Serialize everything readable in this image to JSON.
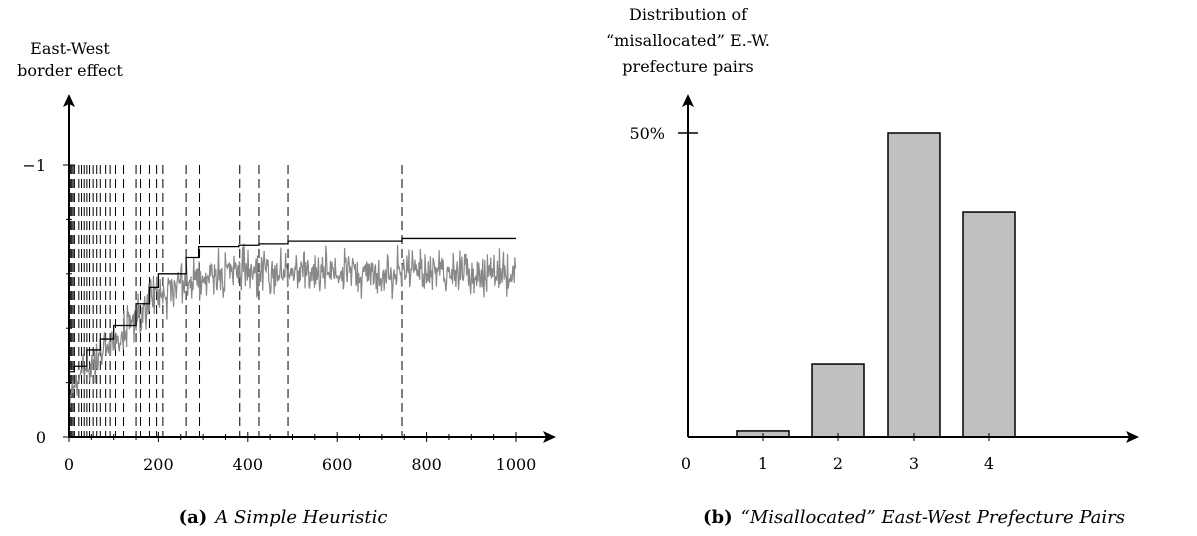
{
  "chart_data": [
    {
      "type": "line",
      "caption_label": "(a)",
      "caption_text": "A Simple Heuristic",
      "ylabel_lines": [
        "East-West",
        "border effect"
      ],
      "xlim": [
        0,
        1000
      ],
      "x_ticks": [
        "0",
        "200",
        "400",
        "600",
        "800",
        "1000"
      ],
      "ylim": [
        0,
        -1
      ],
      "y_ticks": [
        "0",
        "−1"
      ],
      "grid": false,
      "series": [
        {
          "kind": "step",
          "color": "#000000",
          "points": [
            [
              0,
              -0.24
            ],
            [
              12,
              -0.24
            ],
            [
              12,
              -0.26
            ],
            [
              40,
              -0.26
            ],
            [
              40,
              -0.32
            ],
            [
              70,
              -0.32
            ],
            [
              70,
              -0.36
            ],
            [
              100,
              -0.36
            ],
            [
              100,
              -0.41
            ],
            [
              150,
              -0.41
            ],
            [
              150,
              -0.49
            ],
            [
              180,
              -0.49
            ],
            [
              180,
              -0.55
            ],
            [
              200,
              -0.55
            ],
            [
              200,
              -0.6
            ],
            [
              262,
              -0.6
            ],
            [
              262,
              -0.66
            ],
            [
              290,
              -0.66
            ],
            [
              290,
              -0.7
            ],
            [
              380,
              -0.7
            ],
            [
              380,
              -0.705
            ],
            [
              425,
              -0.705
            ],
            [
              425,
              -0.71
            ],
            [
              490,
              -0.71
            ],
            [
              490,
              -0.72
            ],
            [
              745,
              -0.72
            ],
            [
              745,
              -0.73
            ],
            [
              1000,
              -0.73
            ]
          ]
        },
        {
          "kind": "noisy",
          "color": "#888888",
          "trend": [
            [
              0,
              -0.17
            ],
            [
              50,
              -0.27
            ],
            [
              100,
              -0.35
            ],
            [
              150,
              -0.44
            ],
            [
              200,
              -0.52
            ],
            [
              260,
              -0.57
            ],
            [
              300,
              -0.6
            ],
            [
              400,
              -0.6
            ],
            [
              500,
              -0.61
            ],
            [
              600,
              -0.6
            ],
            [
              700,
              -0.6
            ],
            [
              800,
              -0.61
            ],
            [
              900,
              -0.6
            ],
            [
              1000,
              -0.6
            ]
          ],
          "amplitude": 0.06
        }
      ],
      "vlines_x": [
        0,
        3,
        6,
        9,
        12,
        22,
        28,
        34,
        40,
        46,
        54,
        62,
        70,
        82,
        92,
        104,
        122,
        150,
        160,
        180,
        196,
        210,
        262,
        292,
        382,
        425,
        490,
        745
      ]
    },
    {
      "type": "bar",
      "caption_label": "(b)",
      "caption_text": "“Misallocated” East-West Prefecture Pairs",
      "ylabel_lines": [
        "Distribution of",
        "“misallocated” E.-W.",
        "prefecture pairs"
      ],
      "x_origin_label": "0",
      "categories": [
        "1",
        "2",
        "3",
        "4"
      ],
      "values": [
        1,
        12,
        50,
        37
      ],
      "y_tick_value": 50,
      "y_tick_label": "50%",
      "ylim": [
        0,
        55
      ],
      "bar_color": "#c0c0c0",
      "grid": false
    }
  ]
}
